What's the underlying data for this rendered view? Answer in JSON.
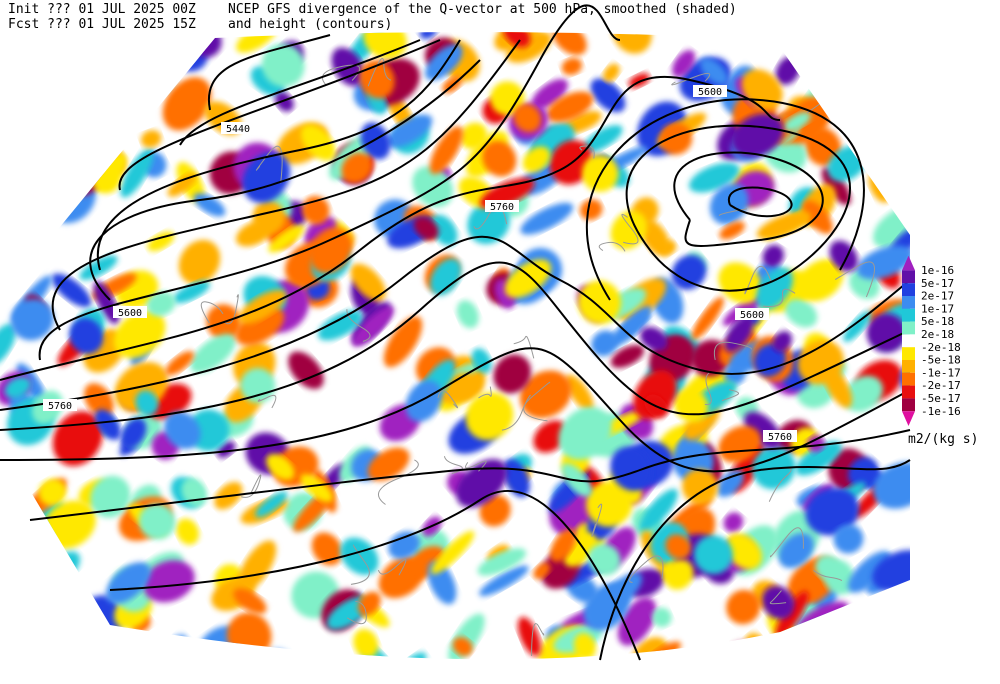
{
  "header": {
    "init": "Init  ??? 01 JUL 2025 00Z",
    "fcst": "Fcst ??? 01 JUL 2025 15Z",
    "title_line1": "NCEP GFS divergence of the Q-vector at 500 hPa, smoothed (shaded)",
    "title_line2": "and height (contours)"
  },
  "legend": {
    "labels": [
      "1e-16",
      "5e-17",
      "2e-17",
      "1e-17",
      "5e-18",
      "2e-18",
      "-2e-18",
      "-5e-18",
      "-1e-17",
      "-2e-17",
      "-5e-17",
      "-1e-16"
    ],
    "colors": [
      "#a020c0",
      "#6010a8",
      "#2040e0",
      "#3c8cf0",
      "#20c8d8",
      "#80f0c8",
      "#ffffff",
      "#ffe800",
      "#ffb000",
      "#ff7000",
      "#e81010",
      "#a00040",
      "#e010a0"
    ],
    "units": "m2/(kg s)"
  },
  "contour_labels": [
    "5440",
    "5600",
    "5760",
    "5600",
    "5600",
    "5760",
    "5760"
  ]
}
